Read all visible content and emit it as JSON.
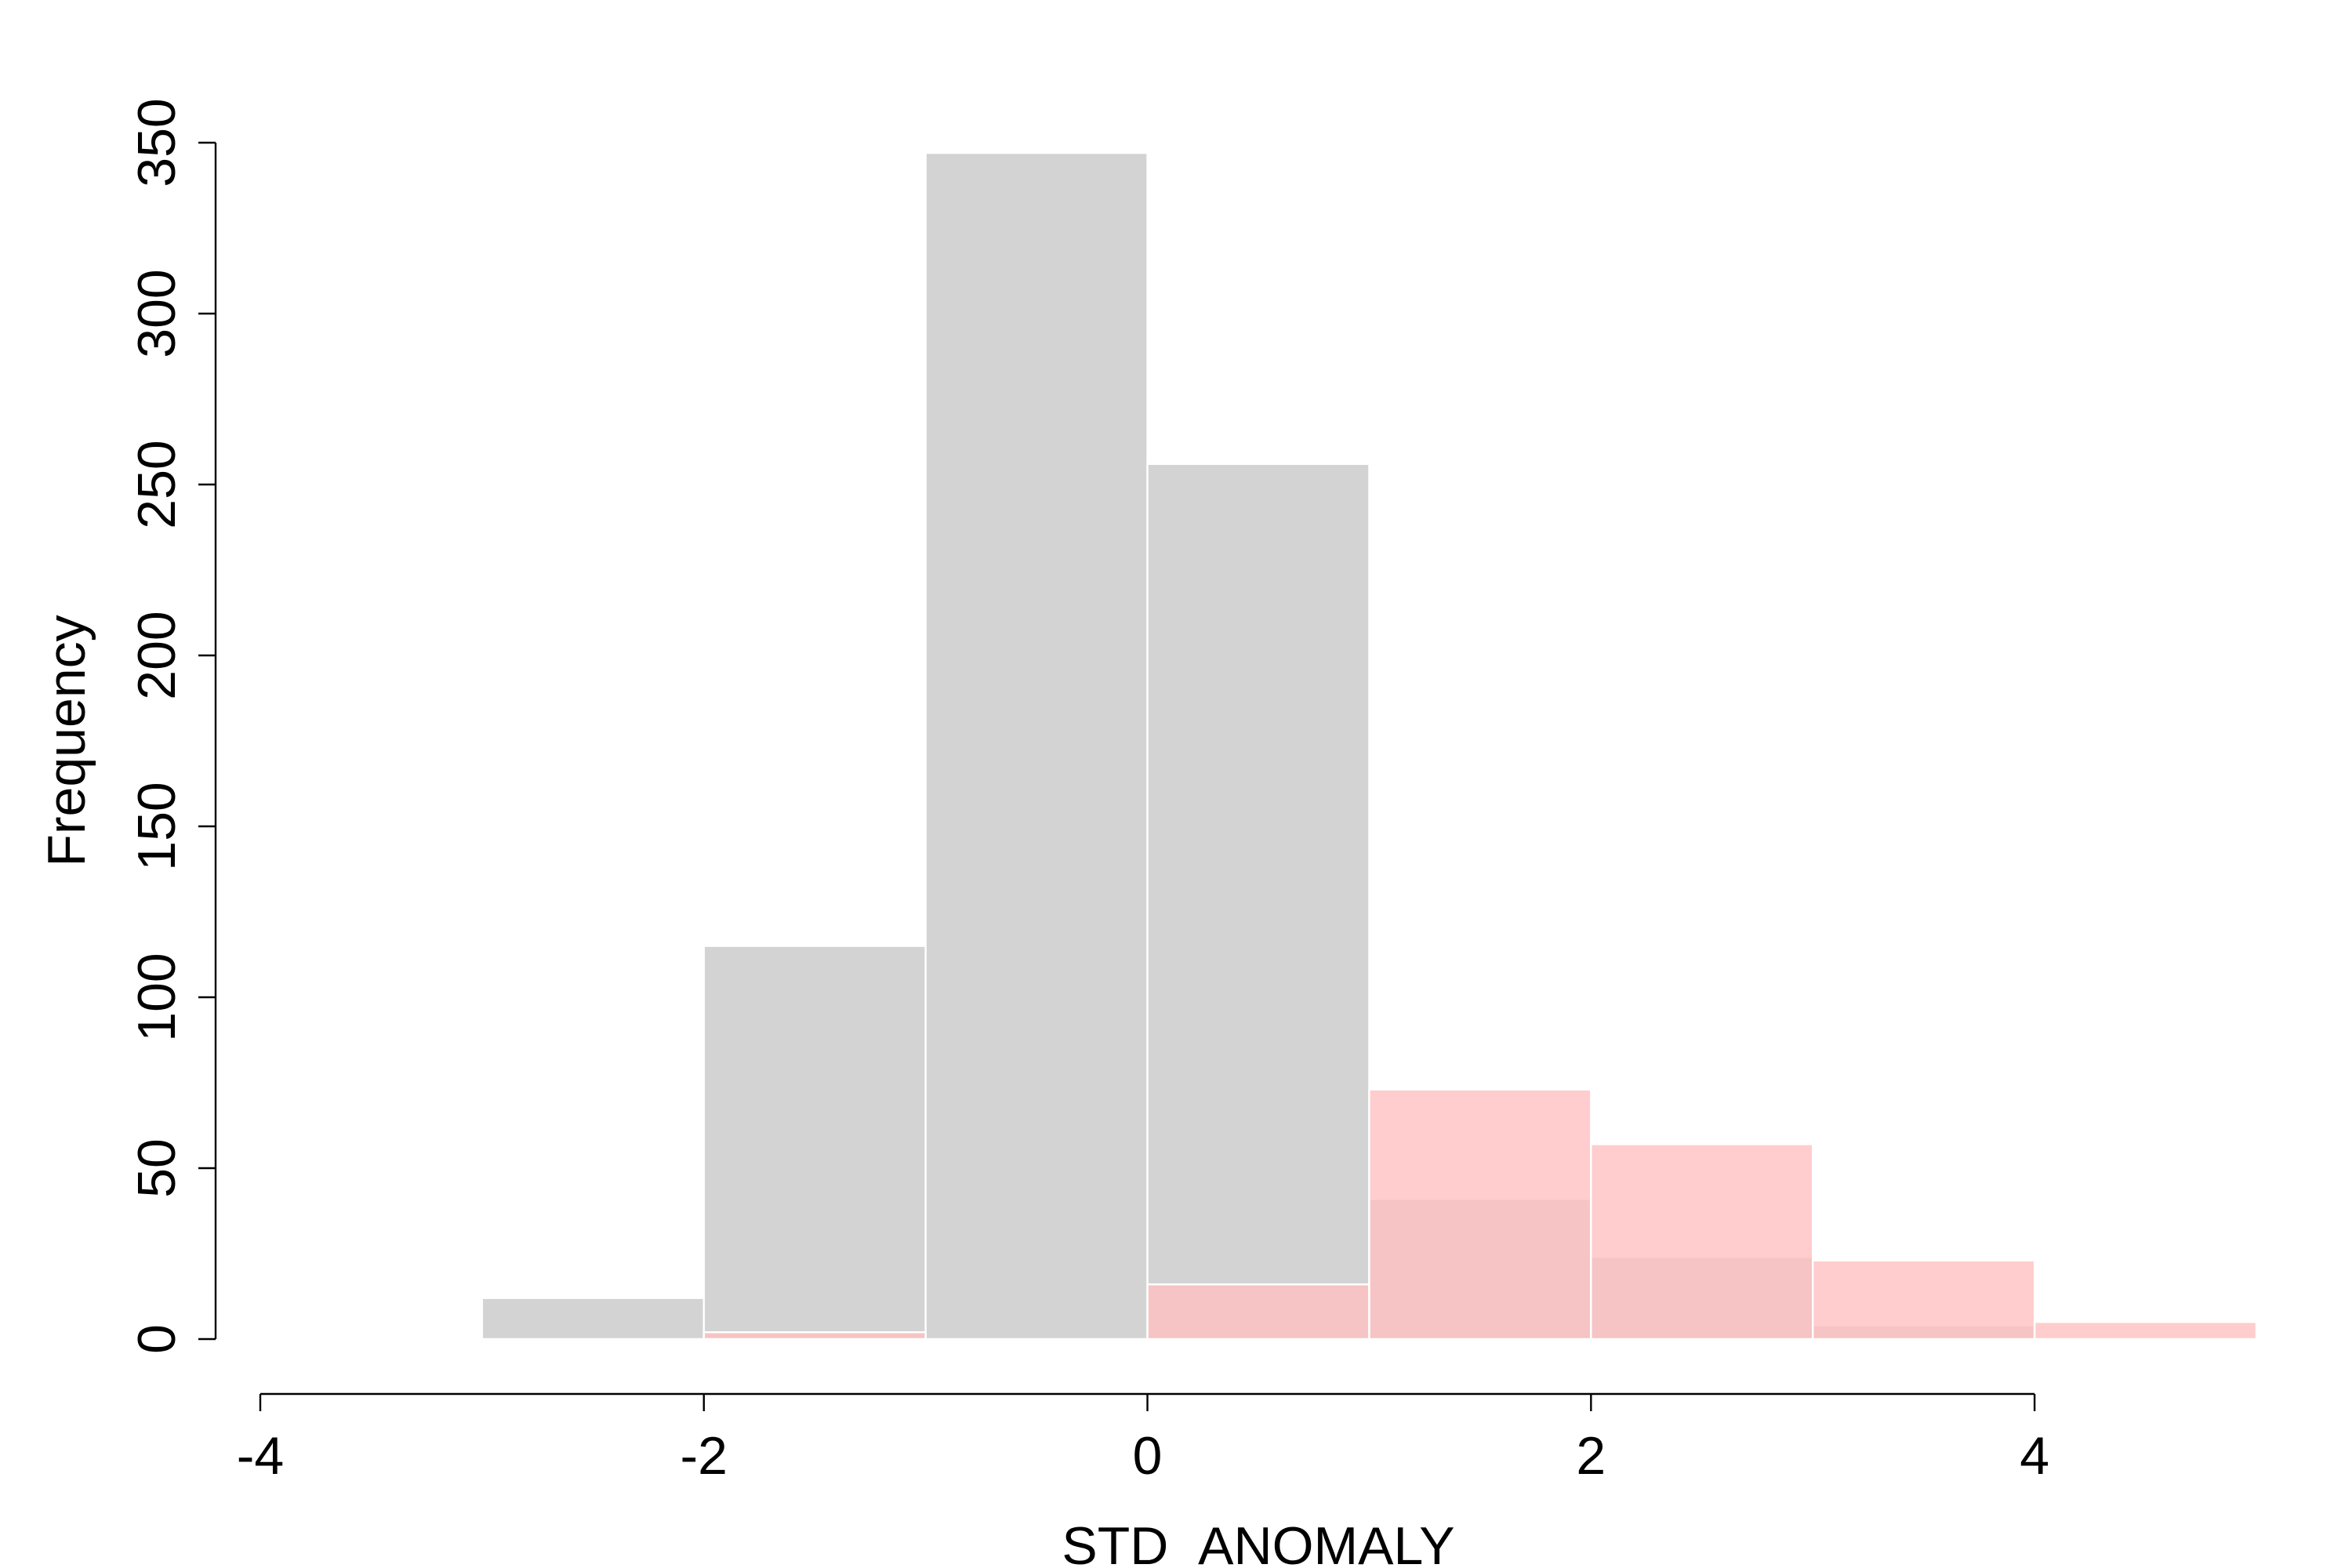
{
  "chart_data": {
    "type": "bar",
    "title": "",
    "xlabel": "STD_ANOMALY",
    "ylabel": "Frequency",
    "xlim": [
      -4,
      5
    ],
    "ylim": [
      0,
      350
    ],
    "x_ticks": [
      -4,
      -2,
      0,
      2,
      4
    ],
    "y_ticks": [
      0,
      50,
      100,
      150,
      200,
      250,
      300,
      350
    ],
    "grid": false,
    "legend": "none",
    "bin_edges": [
      -4,
      -3,
      -2,
      -1,
      0,
      1,
      2,
      3,
      4,
      5
    ],
    "series": [
      {
        "color": "#d3d3d3",
        "values": [
          0,
          12,
          115,
          347,
          256,
          41,
          24,
          4,
          0
        ]
      },
      {
        "color": "#ffc0c0",
        "opacity": 0.8,
        "values": [
          0,
          0,
          2,
          0,
          16,
          73,
          57,
          23,
          5
        ]
      }
    ]
  }
}
